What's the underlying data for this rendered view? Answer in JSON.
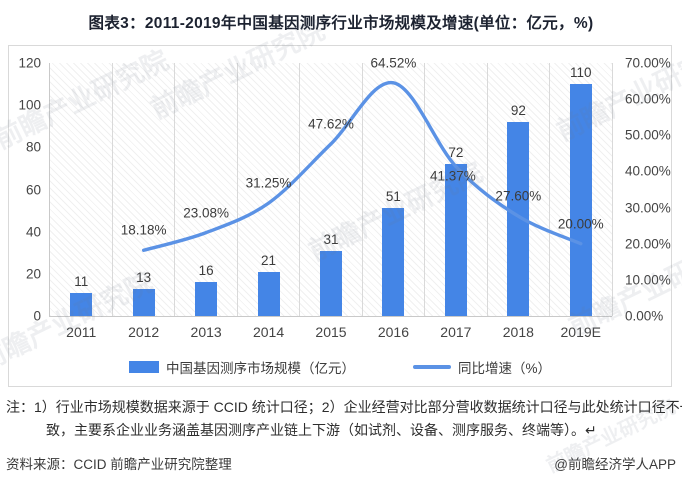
{
  "page": {
    "title": "图表3：2011-2019年中国基因测序行业市场规模及增速(单位：亿元，%)"
  },
  "watermark": {
    "text": "前瞻产业研究院"
  },
  "chart_data": {
    "type": "bar",
    "subtype": "combo-bar-line",
    "title": "图表3：2011-2019年中国基因测序行业市场规模及增速(单位：亿元，%)",
    "categories": [
      "2011",
      "2012",
      "2013",
      "2014",
      "2015",
      "2016",
      "2017",
      "2018",
      "2019E"
    ],
    "series": [
      {
        "name": "中国基因测序市场规模（亿元）",
        "type": "bar",
        "axis": "left",
        "color": "#4485e6",
        "values": [
          11,
          13,
          16,
          21,
          31,
          51,
          72,
          92,
          110
        ],
        "value_labels": [
          "11",
          "13",
          "16",
          "21",
          "31",
          "51",
          "72",
          "92",
          "110"
        ]
      },
      {
        "name": "同比增速（%）",
        "type": "line",
        "axis": "right",
        "color": "#5b92e5",
        "values": [
          null,
          18.18,
          23.08,
          31.25,
          47.62,
          64.52,
          41.37,
          27.6,
          20.0
        ],
        "value_labels": [
          "",
          "18.18%",
          "23.08%",
          "31.25%",
          "47.62%",
          "64.52%",
          "41.37%",
          "27.60%",
          "20.00%"
        ]
      }
    ],
    "left_axis": {
      "min": 0,
      "max": 120,
      "ticks": [
        "0",
        "20",
        "40",
        "60",
        "80",
        "100",
        "120"
      ]
    },
    "right_axis": {
      "min": 0,
      "max": 70,
      "ticks": [
        "0.00%",
        "10.00%",
        "20.00%",
        "30.00%",
        "40.00%",
        "50.00%",
        "60.00%",
        "70.00%"
      ]
    },
    "gridlines": "vertical",
    "legend_position": "bottom"
  },
  "footer": {
    "note": "注：1）行业市场规模数据来源于 CCID 统计口径；2）企业经营对比部分营收数据统计口径与此处统计口径不一致，主要系企业业务涵盖基因测序产业链上下游（如试剂、设备、测序服务、终端等）。↵",
    "source": "资料来源：CCID 前瞻产业研究院整理",
    "credit": "@前瞻经济学人APP"
  }
}
